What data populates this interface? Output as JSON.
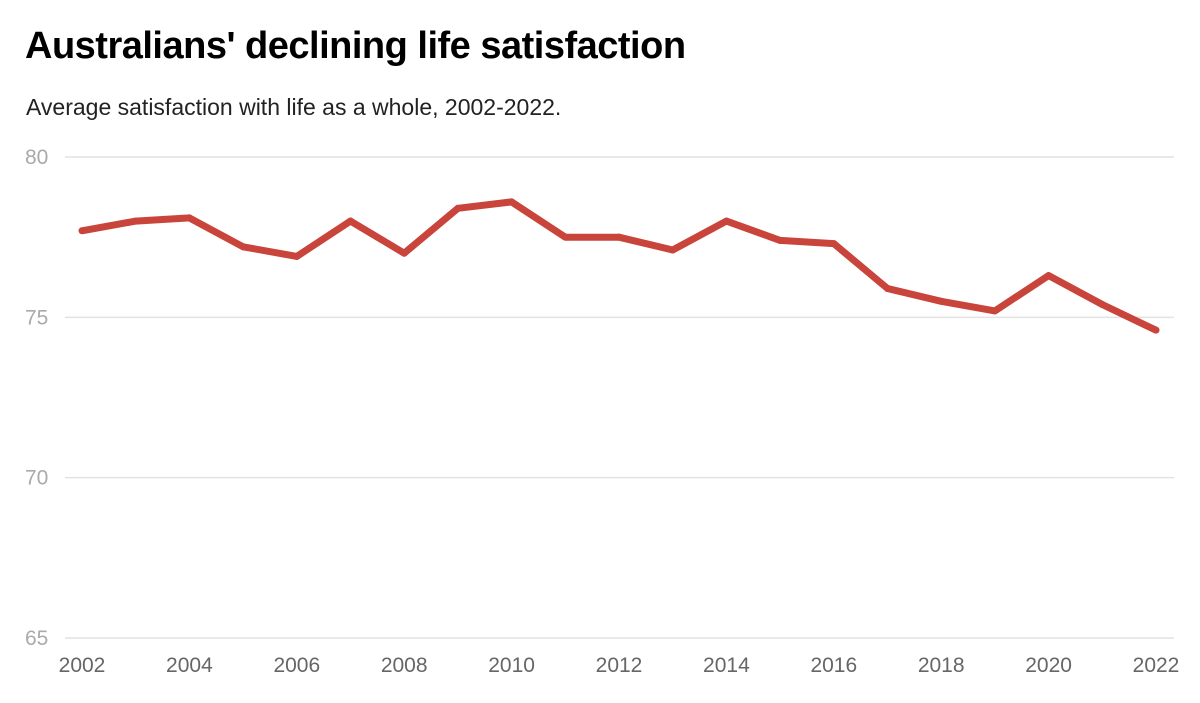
{
  "header": {
    "title": "Australians' declining life satisfaction",
    "subtitle": "Average satisfaction with life as a whole, 2002-2022."
  },
  "colors": {
    "line": "#c9443a",
    "grid": "#e2e2e2",
    "y_tick_text": "#aaaaaa",
    "x_tick_text": "#666666"
  },
  "chart_data": {
    "type": "line",
    "title": "Australians' declining life satisfaction",
    "subtitle": "Average satisfaction with life as a whole, 2002-2022.",
    "xlabel": "",
    "ylabel": "",
    "xlim": [
      2002,
      2022
    ],
    "ylim": [
      65,
      80
    ],
    "grid": true,
    "legend": "none",
    "y_ticks": [
      "80",
      "75",
      "70",
      "65"
    ],
    "x_ticks": [
      "2002",
      "2004",
      "2006",
      "2008",
      "2010",
      "2012",
      "2014",
      "2016",
      "2018",
      "2020",
      "2022"
    ],
    "series": [
      {
        "x": [
          2002,
          2003,
          2004,
          2005,
          2006,
          2007,
          2008,
          2009,
          2010,
          2011,
          2012,
          2013,
          2014,
          2015,
          2016,
          2017,
          2018,
          2019,
          2020,
          2021,
          2022
        ],
        "values": [
          77.7,
          78.0,
          78.1,
          77.2,
          76.9,
          78.0,
          77.0,
          78.4,
          78.6,
          77.5,
          77.5,
          77.1,
          78.0,
          77.4,
          77.3,
          75.9,
          75.5,
          75.2,
          76.3,
          75.4,
          74.6
        ]
      }
    ]
  }
}
